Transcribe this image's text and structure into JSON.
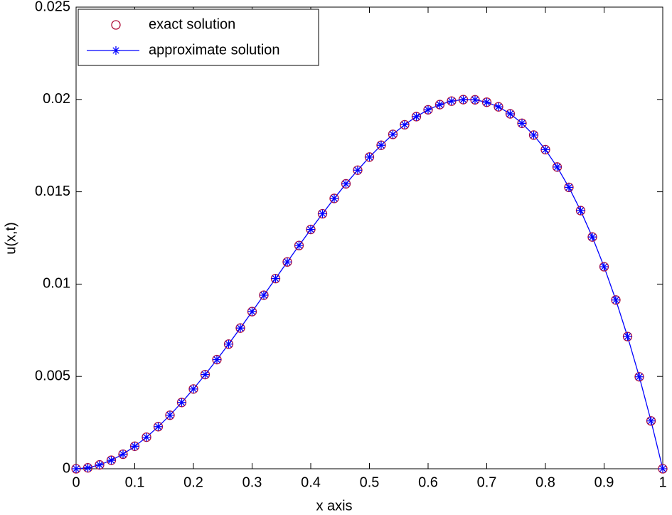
{
  "chart_data": {
    "type": "line",
    "xlabel": "x axis",
    "ylabel": "u(x,t)",
    "x": [
      0,
      0.02,
      0.04,
      0.06,
      0.08,
      0.1,
      0.12,
      0.14,
      0.16,
      0.18,
      0.2,
      0.22,
      0.24,
      0.26,
      0.28,
      0.3,
      0.32,
      0.34,
      0.36,
      0.38,
      0.4,
      0.42,
      0.44,
      0.46,
      0.48,
      0.5,
      0.52,
      0.54,
      0.56,
      0.58,
      0.6,
      0.62,
      0.64,
      0.66,
      0.68,
      0.7,
      0.72,
      0.74,
      0.76,
      0.78,
      0.8,
      0.82,
      0.84,
      0.86,
      0.88,
      0.9,
      0.92,
      0.94,
      0.96,
      0.98,
      1
    ],
    "series": [
      {
        "name": "exact solution",
        "color": "#b0103a",
        "marker": "o",
        "line": false,
        "values": [
          0,
          5e-05,
          0.00021,
          0.00046,
          0.00079,
          0.00122,
          0.00171,
          0.00228,
          0.0029,
          0.00359,
          0.00432,
          0.0051,
          0.00591,
          0.00675,
          0.00762,
          0.00851,
          0.0094,
          0.0103,
          0.0112,
          0.01209,
          0.01296,
          0.01381,
          0.01464,
          0.01543,
          0.01617,
          0.01688,
          0.01752,
          0.01811,
          0.01863,
          0.01907,
          0.01944,
          0.01972,
          0.01991,
          0.01999,
          0.01998,
          0.01985,
          0.0196,
          0.01922,
          0.01871,
          0.01807,
          0.01728,
          0.01634,
          0.01524,
          0.01398,
          0.01255,
          0.01094,
          0.00914,
          0.00716,
          0.00498,
          0.00259,
          0
        ]
      },
      {
        "name": "approximate solution",
        "color": "#0000ff",
        "marker": "*",
        "line": true,
        "values": [
          0,
          5e-05,
          0.00021,
          0.00046,
          0.00079,
          0.00122,
          0.00171,
          0.00228,
          0.0029,
          0.00359,
          0.00432,
          0.0051,
          0.00591,
          0.00675,
          0.00762,
          0.00851,
          0.0094,
          0.0103,
          0.0112,
          0.01209,
          0.01296,
          0.01381,
          0.01464,
          0.01543,
          0.01617,
          0.01688,
          0.01752,
          0.01811,
          0.01863,
          0.01907,
          0.01944,
          0.01972,
          0.01991,
          0.01999,
          0.01998,
          0.01985,
          0.0196,
          0.01922,
          0.01871,
          0.01807,
          0.01728,
          0.01634,
          0.01524,
          0.01398,
          0.01255,
          0.01094,
          0.00914,
          0.00716,
          0.00498,
          0.00259,
          0
        ]
      }
    ],
    "xlim": [
      0,
      1
    ],
    "xticks": [
      0,
      0.1,
      0.2,
      0.3,
      0.4,
      0.5,
      0.6,
      0.7,
      0.8,
      0.9,
      1
    ],
    "ylim": [
      0,
      0.025
    ],
    "yticks": [
      0,
      0.005,
      0.01,
      0.015,
      0.02,
      0.025
    ],
    "grid": false,
    "legend": "upper left"
  }
}
